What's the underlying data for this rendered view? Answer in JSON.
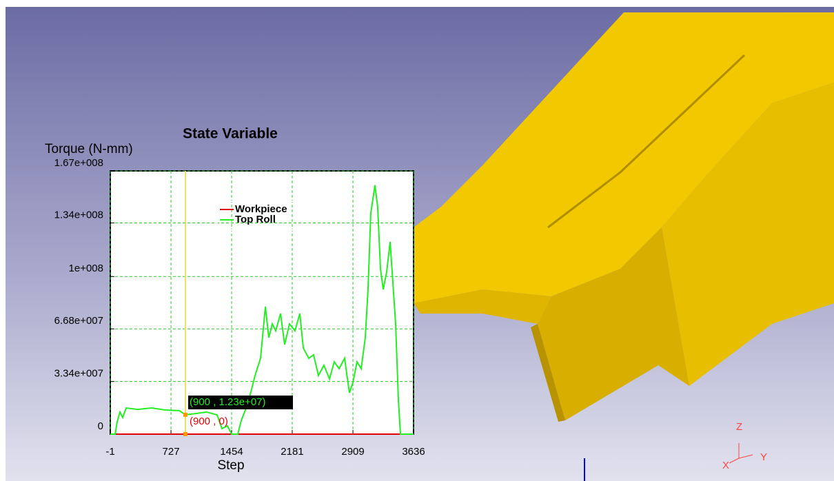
{
  "chart_data": {
    "type": "line",
    "title": "State Variable",
    "y_label": "Torque (N-mm)",
    "x_label": "Step",
    "xlim": [
      -1,
      3636
    ],
    "xticks": [
      -1,
      727,
      1454,
      2181,
      2909,
      3636
    ],
    "ylim": [
      0,
      167000000
    ],
    "yticks": [
      {
        "value": 0,
        "label": "0"
      },
      {
        "value": 33400000,
        "label": "3.34e+007"
      },
      {
        "value": 66800000,
        "label": "6.68e+007"
      },
      {
        "value": 100000000,
        "label": "1e+008"
      },
      {
        "value": 134000000,
        "label": "1.34e+008"
      },
      {
        "value": 167000000,
        "label": "1.67e+008"
      }
    ],
    "grid": true,
    "legend": "top",
    "series": [
      {
        "name": "Workpiece",
        "color": "#e00000",
        "x": [
          -1,
          3636
        ],
        "values": [
          0,
          0
        ]
      },
      {
        "name": "Top Roll",
        "color": "#22ee22",
        "x": [
          -1,
          57,
          82,
          115,
          148,
          189,
          330,
          495,
          660,
          826,
          900,
          1032,
          1156,
          1280,
          1338,
          1404,
          1454,
          1528,
          1570,
          1652,
          1735,
          1801,
          1859,
          1900,
          1942,
          1983,
          2041,
          2090,
          2148,
          2214,
          2272,
          2314,
          2380,
          2437,
          2495,
          2561,
          2628,
          2685,
          2743,
          2809,
          2867,
          2909,
          2958,
          3008,
          3057,
          3090,
          3123,
          3173,
          3206,
          3239,
          3272,
          3314,
          3355,
          3388,
          3421,
          3454,
          3479,
          3636
        ],
        "values": [
          0,
          0,
          7900000,
          14000000,
          10500000,
          16600000,
          15700000,
          16600000,
          15300000,
          14900000,
          12300000,
          13100000,
          14000000,
          12200000,
          3500000,
          5200000,
          0,
          0,
          8700000,
          19700000,
          37200000,
          48100000,
          80900000,
          61200000,
          69900000,
          65600000,
          76500000,
          56800000,
          69900000,
          65600000,
          76500000,
          54600000,
          48100000,
          50300000,
          37200000,
          43700000,
          35000000,
          45900000,
          41500000,
          48100000,
          26200000,
          32800000,
          45900000,
          41500000,
          61200000,
          91800000,
          140000000,
          158000000,
          144000000,
          105000000,
          91800000,
          103000000,
          122000000,
          96200000,
          69900000,
          21900000,
          0,
          0
        ]
      }
    ],
    "cursor": {
      "x": 900,
      "points": [
        {
          "value": 12300000,
          "label": "(900 , 1.23e+07)",
          "color": "#22ee22"
        },
        {
          "value": 0,
          "label": "(900 , 0)",
          "color": "#e00000"
        }
      ]
    }
  },
  "triad": {
    "z": "Z",
    "x": "X",
    "y": "Y"
  }
}
